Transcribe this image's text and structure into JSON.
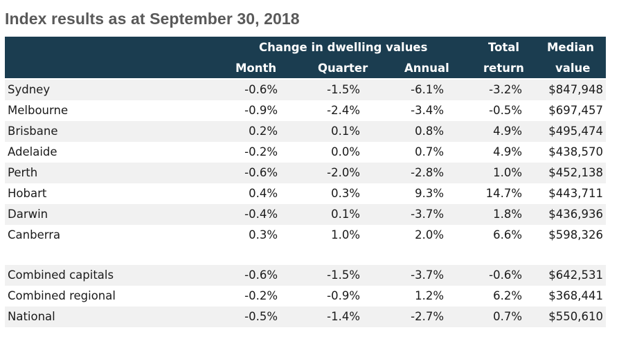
{
  "title": "Index results as at September 30, 2018",
  "colors": {
    "header_bg": "#1b3d50",
    "header_text": "#ffffff",
    "stripe": "#f1f1f1",
    "title": "#595959"
  },
  "header": {
    "group_label": "Change in dwelling values",
    "month": "Month",
    "quarter": "Quarter",
    "annual": "Annual",
    "total_line1": "Total",
    "total_line2": "return",
    "median_line1": "Median",
    "median_line2": "value"
  },
  "rows": [
    {
      "name": "Sydney",
      "month": "-0.6%",
      "quarter": "-1.5%",
      "annual": "-6.1%",
      "total": "-3.2%",
      "median": "$847,948"
    },
    {
      "name": "Melbourne",
      "month": "-0.9%",
      "quarter": "-2.4%",
      "annual": "-3.4%",
      "total": "-0.5%",
      "median": "$697,457"
    },
    {
      "name": "Brisbane",
      "month": "0.2%",
      "quarter": "0.1%",
      "annual": "0.8%",
      "total": "4.9%",
      "median": "$495,474"
    },
    {
      "name": "Adelaide",
      "month": "-0.2%",
      "quarter": "0.0%",
      "annual": "0.7%",
      "total": "4.9%",
      "median": "$438,570"
    },
    {
      "name": "Perth",
      "month": "-0.6%",
      "quarter": "-2.0%",
      "annual": "-2.8%",
      "total": "1.0%",
      "median": "$452,138"
    },
    {
      "name": "Hobart",
      "month": "0.4%",
      "quarter": "0.3%",
      "annual": "9.3%",
      "total": "14.7%",
      "median": "$443,711"
    },
    {
      "name": "Darwin",
      "month": "-0.4%",
      "quarter": "0.1%",
      "annual": "-3.7%",
      "total": "1.8%",
      "median": "$436,936"
    },
    {
      "name": "Canberra",
      "month": "0.3%",
      "quarter": "1.0%",
      "annual": "2.0%",
      "total": "6.6%",
      "median": "$598,326"
    }
  ],
  "summary_rows": [
    {
      "name": "Combined capitals",
      "month": "-0.6%",
      "quarter": "-1.5%",
      "annual": "-3.7%",
      "total": "-0.6%",
      "median": "$642,531"
    },
    {
      "name": "Combined regional",
      "month": "-0.2%",
      "quarter": "-0.9%",
      "annual": "1.2%",
      "total": "6.2%",
      "median": "$368,441"
    },
    {
      "name": "National",
      "month": "-0.5%",
      "quarter": "-1.4%",
      "annual": "-2.7%",
      "total": "0.7%",
      "median": "$550,610"
    }
  ]
}
